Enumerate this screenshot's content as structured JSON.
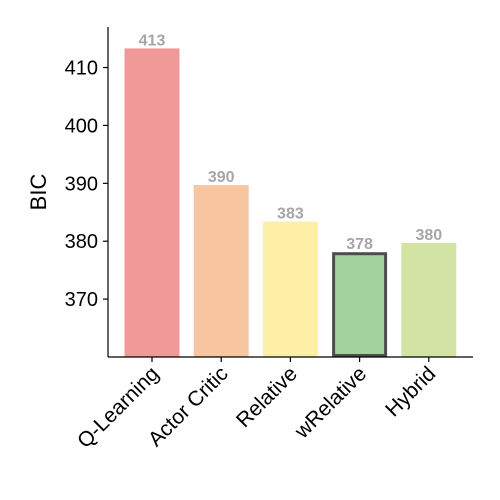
{
  "chart_data": {
    "type": "bar",
    "categories": [
      "Q-Learning",
      "Actor Critic",
      "Relative",
      "wRelative",
      "Hybrid"
    ],
    "values": [
      413.3,
      389.7,
      383.4,
      378.1,
      379.7
    ],
    "data_labels": [
      "413",
      "390",
      "383",
      "378",
      "380"
    ],
    "colors": [
      "#f09999",
      "#f7c5a0",
      "#fdf0a6",
      "#a3d29e",
      "#d3e3a3"
    ],
    "highlighted": [
      false,
      false,
      false,
      true,
      false
    ],
    "highlight_border_color": "#4d4d4d",
    "title": "",
    "xlabel": "",
    "ylabel": "BIC",
    "ylim": [
      360.0,
      417.0
    ],
    "yticks": [
      370,
      380,
      390,
      400,
      410
    ],
    "grid": false
  }
}
